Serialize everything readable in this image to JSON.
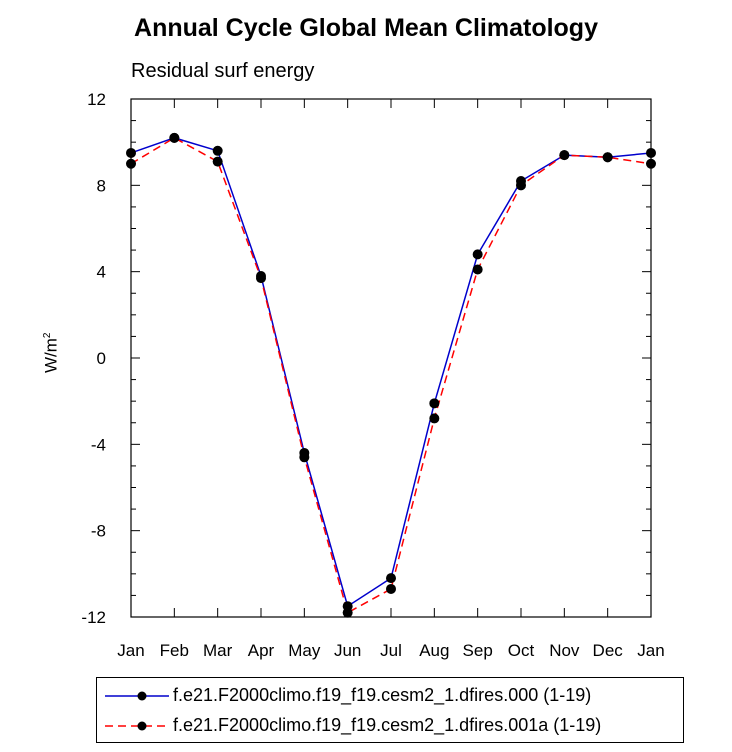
{
  "chart_data": {
    "type": "line",
    "title": "Annual Cycle Global Mean Climatology",
    "subtitle": "Residual surf energy",
    "ylabel": "W/m",
    "ylabel_sup": "2",
    "xlabel": "",
    "categories": [
      "Jan",
      "Feb",
      "Mar",
      "Apr",
      "May",
      "Jun",
      "Jul",
      "Aug",
      "Sep",
      "Oct",
      "Nov",
      "Dec",
      "Jan"
    ],
    "ylim": [
      -12,
      12
    ],
    "yticks": [
      -12,
      -8,
      -4,
      0,
      4,
      8,
      12
    ],
    "ytick_labels": [
      "-12",
      "-8",
      "-4",
      "0",
      "4",
      "8",
      "12"
    ],
    "series": [
      {
        "name": "f.e21.F2000climo.f19_f19.cesm2_1.dfires.000 (1-19)",
        "color": "#0000cc",
        "style": "solid",
        "values": [
          9.5,
          10.2,
          9.6,
          3.8,
          -4.4,
          -11.5,
          -10.2,
          -2.1,
          4.8,
          8.2,
          9.4,
          9.3,
          9.5
        ]
      },
      {
        "name": "f.e21.F2000climo.f19_f19.cesm2_1.dfires.001a (1-19)",
        "color": "#ff0000",
        "style": "dashed",
        "values": [
          9.0,
          10.2,
          9.1,
          3.7,
          -4.6,
          -11.8,
          -10.7,
          -2.8,
          4.1,
          8.0,
          9.4,
          9.3,
          9.0
        ]
      }
    ],
    "legend_position": "bottom"
  }
}
